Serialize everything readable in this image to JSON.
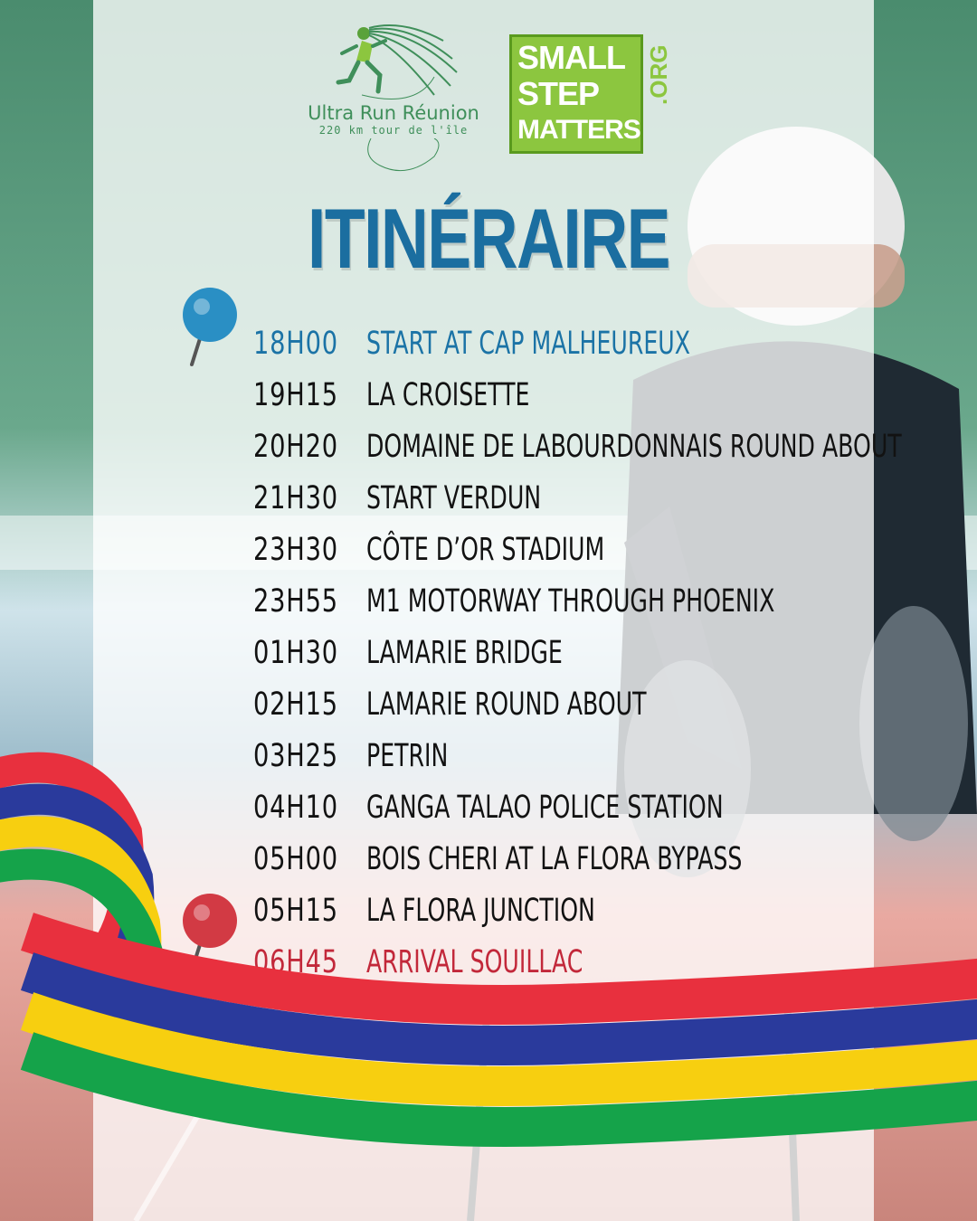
{
  "logos": {
    "ultra_run": {
      "title": "Ultra Run Réunion",
      "subtitle": "220 km tour de l'île"
    },
    "small_step": {
      "lines": [
        "SMALL",
        "STEP",
        "MATTERS"
      ],
      "suffix": ".ORG"
    }
  },
  "title": "ITINÉRAIRE",
  "itinerary": [
    {
      "time": "18H00",
      "place": "START AT CAP MALHEUREUX"
    },
    {
      "time": "19H15",
      "place": "LA CROISETTE"
    },
    {
      "time": "20H20",
      "place": "DOMAINE DE LABOURDONNAIS ROUND ABOUT"
    },
    {
      "time": "21H30",
      "place": "START VERDUN"
    },
    {
      "time": "23H30",
      "place": "CÔTE D’OR STADIUM"
    },
    {
      "time": "23H55",
      "place": "M1 MOTORWAY THROUGH PHOENIX"
    },
    {
      "time": "01H30",
      "place": "LAMARIE BRIDGE"
    },
    {
      "time": "02H15",
      "place": "LAMARIE ROUND ABOUT"
    },
    {
      "time": "03H25",
      "place": "PETRIN"
    },
    {
      "time": "04H10",
      "place": "GANGA TALAO POLICE STATION"
    },
    {
      "time": "05H00",
      "place": "BOIS CHERI AT LA FLORA BYPASS"
    },
    {
      "time": "05H15",
      "place": "LA FLORA JUNCTION"
    },
    {
      "time": "06H45",
      "place": "ARRIVAL SOUILLAC"
    }
  ],
  "colors": {
    "title": "#1b6ea0",
    "start_row": "#1b73a6",
    "end_row": "#c2283a",
    "pin_start": "#2a8fc4",
    "pin_end": "#d23a44",
    "flag_red": "#e8303e",
    "flag_blue": "#2a3a9c",
    "flag_yellow": "#f7cf10",
    "flag_green": "#15a34a"
  },
  "icons": {
    "start_marker": "map-pin-icon",
    "end_marker": "map-pin-icon"
  }
}
